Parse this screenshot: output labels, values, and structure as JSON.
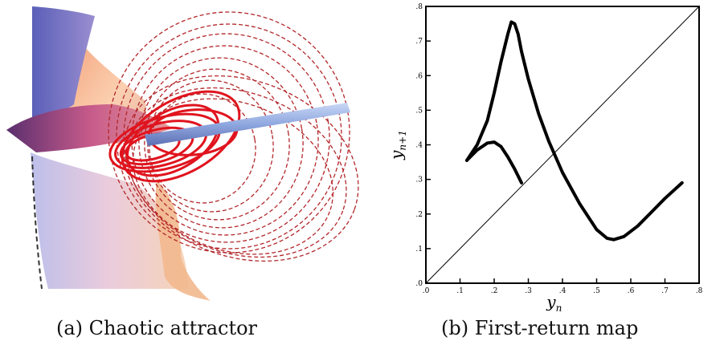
{
  "figure": {
    "captions": {
      "a": "(a) Chaotic attractor",
      "b": "(b) First-return map"
    }
  },
  "chart_data": {
    "type": "line",
    "xlabel": "y_n",
    "ylabel": "y_n+1",
    "xlim": [
      0,
      0.8
    ],
    "ylim": [
      0,
      0.8
    ],
    "x_ticks": [
      0,
      0.1,
      0.2,
      0.3,
      0.4,
      0.5,
      0.6,
      0.7,
      0.8
    ],
    "y_ticks": [
      0,
      0.1,
      0.2,
      0.3,
      0.4,
      0.5,
      0.6,
      0.7,
      0.8
    ],
    "tick_labels": [
      ".0",
      ".1",
      ".2",
      ".3",
      ".4",
      ".5",
      ".6",
      ".7",
      ".8"
    ],
    "grid": false,
    "series": [
      {
        "style": "thick",
        "x": [
          0.12,
          0.15,
          0.18,
          0.2,
          0.22,
          0.24,
          0.25,
          0.26,
          0.27,
          0.28,
          0.3,
          0.33,
          0.36,
          0.4,
          0.45,
          0.5,
          0.53,
          0.55,
          0.58,
          0.62,
          0.66,
          0.7,
          0.75
        ],
        "y": [
          0.355,
          0.4,
          0.47,
          0.55,
          0.64,
          0.72,
          0.755,
          0.75,
          0.72,
          0.67,
          0.59,
          0.49,
          0.41,
          0.32,
          0.23,
          0.155,
          0.13,
          0.126,
          0.135,
          0.165,
          0.205,
          0.245,
          0.29
        ]
      },
      {
        "style": "thick",
        "x": [
          0.12,
          0.15,
          0.18,
          0.2,
          0.22,
          0.24,
          0.26,
          0.28
        ],
        "y": [
          0.355,
          0.385,
          0.405,
          0.408,
          0.395,
          0.365,
          0.33,
          0.29
        ]
      },
      {
        "style": "thin",
        "x": [
          0,
          0.8
        ],
        "y": [
          0,
          0.8
        ]
      }
    ]
  }
}
